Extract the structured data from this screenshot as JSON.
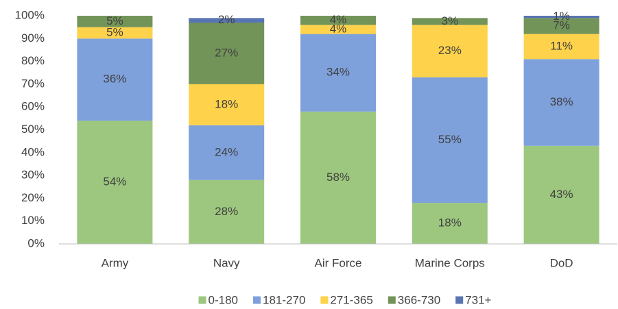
{
  "chart_data": {
    "type": "stacked_bar",
    "categories": [
      "Army",
      "Navy",
      "Air Force",
      "Marine Corps",
      "DoD"
    ],
    "series": [
      {
        "name": "0-180",
        "color": "#9dc77f",
        "values": [
          54,
          28,
          58,
          18,
          43
        ],
        "value_labels": [
          "54%",
          "28%",
          "58%",
          "18%",
          "43%"
        ]
      },
      {
        "name": "181-270",
        "color": "#7ea1dc",
        "values": [
          36,
          24,
          34,
          55,
          38
        ],
        "value_labels": [
          "36%",
          "24%",
          "34%",
          "55%",
          "38%"
        ]
      },
      {
        "name": "271-365",
        "color": "#fed24a",
        "values": [
          5,
          18,
          4,
          23,
          11
        ],
        "value_labels": [
          "5%",
          "18%",
          "4%",
          "23%",
          "11%"
        ]
      },
      {
        "name": "366-730",
        "color": "#729459",
        "values": [
          5,
          27,
          4,
          3,
          7
        ],
        "value_labels": [
          "5%",
          "27%",
          "4%",
          "3%",
          "7%"
        ]
      },
      {
        "name": "731+",
        "color": "#5874b2",
        "values": [
          0,
          2,
          0,
          0,
          1
        ],
        "value_labels": [
          null,
          "2%",
          null,
          null,
          "1%"
        ]
      }
    ],
    "ylim": [
      0,
      100
    ],
    "yticks": [
      {
        "value": 0,
        "label": "0%"
      },
      {
        "value": 10,
        "label": "10%"
      },
      {
        "value": 20,
        "label": "20%"
      },
      {
        "value": 30,
        "label": "30%"
      },
      {
        "value": 40,
        "label": "40%"
      },
      {
        "value": 50,
        "label": "50%"
      },
      {
        "value": 60,
        "label": "60%"
      },
      {
        "value": 70,
        "label": "70%"
      },
      {
        "value": 80,
        "label": "80%"
      },
      {
        "value": 90,
        "label": "90%"
      },
      {
        "value": 100,
        "label": "100%"
      }
    ],
    "grid": false,
    "legend": "bottom"
  }
}
